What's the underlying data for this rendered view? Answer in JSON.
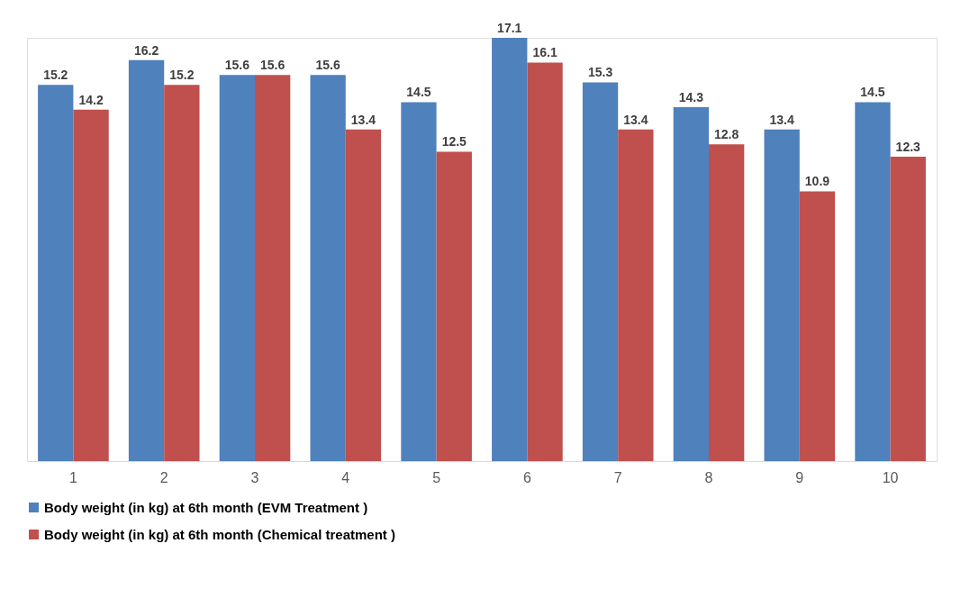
{
  "chart_data": {
    "type": "bar",
    "categories": [
      "1",
      "2",
      "3",
      "4",
      "5",
      "6",
      "7",
      "8",
      "9",
      "10"
    ],
    "series": [
      {
        "name": "Body weight (in kg) at 6th month (EVM Treatment )",
        "color": "#4f81bd",
        "values": [
          15.2,
          16.2,
          15.6,
          15.6,
          14.5,
          17.1,
          15.3,
          14.3,
          13.4,
          14.5
        ]
      },
      {
        "name": "Body weight (in kg)  at 6th month (Chemical treatment )",
        "color": "#c0504d",
        "values": [
          14.2,
          15.2,
          15.6,
          13.4,
          12.5,
          16.1,
          13.4,
          12.8,
          10.9,
          12.3
        ]
      }
    ],
    "data_labels": true,
    "grid": false,
    "legend": "bottom",
    "tick_labels": "x"
  }
}
